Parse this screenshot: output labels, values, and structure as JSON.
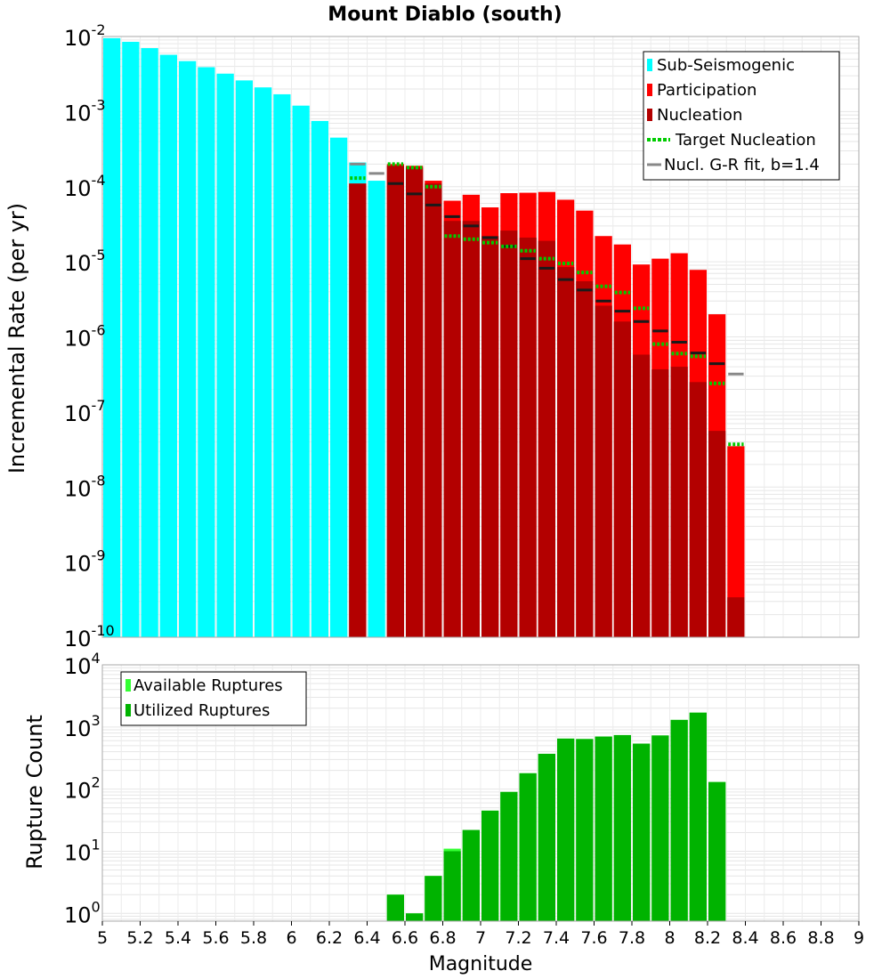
{
  "title": "Mount Diablo (south)",
  "colors": {
    "sub_seismogenic": "#00ffff",
    "participation": "#ff0000",
    "nucleation": "#b30000",
    "target_nucleation": "#00cc00",
    "gr_fit": "#888888",
    "target_segment_dark": "#1a1a1a",
    "available": "#33ff33",
    "utilized": "#00b300"
  },
  "chart_data": [
    {
      "type": "bar",
      "title": "Mount Diablo (south)",
      "xlabel": "",
      "ylabel": "Incremental Rate (per yr)",
      "yscale": "log",
      "ylim": [
        1e-10,
        0.01
      ],
      "xlim": [
        5,
        9
      ],
      "grid": true,
      "legend_position": "top-right",
      "legend": [
        "Sub-Seismogenic",
        "Participation",
        "Nucleation",
        "Target Nucleation",
        "Nucl. G-R fit, b=1.4"
      ],
      "series": [
        {
          "name": "Sub-Seismogenic",
          "x": [
            5.05,
            5.15,
            5.25,
            5.35,
            5.45,
            5.55,
            5.65,
            5.75,
            5.85,
            5.95,
            6.05,
            6.15,
            6.25,
            6.35,
            6.45
          ],
          "values": [
            0.0095,
            0.0085,
            0.007,
            0.0057,
            0.0047,
            0.0039,
            0.0032,
            0.0026,
            0.0021,
            0.0017,
            0.0012,
            0.00075,
            0.00045,
            0.00021,
            0.00012
          ]
        },
        {
          "name": "Participation",
          "x": [
            6.35,
            6.55,
            6.65,
            6.75,
            6.85,
            6.95,
            7.05,
            7.15,
            7.25,
            7.35,
            7.45,
            7.55,
            7.65,
            7.75,
            7.85,
            7.95,
            8.05,
            8.15,
            8.25,
            8.35
          ],
          "values": [
            0.00011,
            0.0002,
            0.00019,
            0.00012,
            6.5e-05,
            7.8e-05,
            5.3e-05,
            8.2e-05,
            8.3e-05,
            8.5e-05,
            6.7e-05,
            4.8e-05,
            2.2e-05,
            1.7e-05,
            9.2e-06,
            1.1e-05,
            1.3e-05,
            7.8e-06,
            2e-06,
            3.5e-08
          ]
        },
        {
          "name": "Nucleation",
          "x": [
            6.35,
            6.55,
            6.65,
            6.75,
            6.85,
            6.95,
            7.05,
            7.15,
            7.25,
            7.35,
            7.45,
            7.55,
            7.65,
            7.75,
            7.85,
            7.95,
            8.05,
            8.15,
            8.25,
            8.35
          ],
          "values": [
            0.00011,
            0.00019,
            0.00018,
            0.00011,
            3.5e-05,
            3.5e-05,
            2.2e-05,
            2.6e-05,
            2.1e-05,
            1.9e-05,
            8.5e-06,
            5.5e-06,
            2.6e-06,
            1.6e-06,
            5.8e-07,
            3.7e-07,
            4e-07,
            2.5e-07,
            5.6e-08,
            3.4e-10
          ]
        },
        {
          "name": "Target Nucleation",
          "x": [
            6.35,
            6.55,
            6.65,
            6.75,
            6.85,
            6.95,
            7.05,
            7.15,
            7.25,
            7.35,
            7.45,
            7.55,
            7.65,
            7.75,
            7.85,
            7.95,
            8.05,
            8.15,
            8.25,
            8.35
          ],
          "values": [
            0.00013,
            0.0002,
            0.00018,
            0.0001,
            2.2e-05,
            2e-05,
            1.8e-05,
            1.6e-05,
            1.4e-05,
            1.1e-05,
            9.5e-06,
            7.2e-06,
            4.7e-06,
            3.9e-06,
            2.4e-06,
            8e-07,
            6e-07,
            5.5e-07,
            2.4e-07,
            3.7e-08
          ]
        },
        {
          "name": "Nucl. G-R fit, b=1.4",
          "x": [
            6.35,
            6.45,
            8.35
          ],
          "values": [
            0.0002,
            0.00015,
            3.2e-07
          ]
        },
        {
          "name": "",
          "x": [
            6.55,
            6.65,
            6.75,
            6.85,
            6.95,
            7.05,
            7.15,
            7.25,
            7.35,
            7.45,
            7.55,
            7.65,
            7.75,
            7.85,
            7.95,
            8.05,
            8.15,
            8.25
          ],
          "values": [
            0.00011,
            8e-05,
            5.7e-05,
            4e-05,
            3e-05,
            2.1e-05,
            1.6e-05,
            1.1e-05,
            8.2e-06,
            5.8e-06,
            4.2e-06,
            3e-06,
            2.2e-06,
            1.6e-06,
            1.2e-06,
            8.5e-07,
            6.1e-07,
            4.4e-07
          ]
        }
      ]
    },
    {
      "type": "bar",
      "title": "",
      "xlabel": "Magnitude",
      "ylabel": "Rupture Count",
      "yscale": "log",
      "ylim": [
        0.75,
        10000
      ],
      "xlim": [
        5,
        9
      ],
      "grid": true,
      "legend_position": "top-left",
      "legend": [
        "Available Ruptures",
        "Utilized Ruptures"
      ],
      "x_ticks": [
        "5",
        "5.2",
        "5.4",
        "5.6",
        "5.8",
        "6",
        "6.2",
        "6.4",
        "6.6",
        "6.8",
        "7",
        "7.2",
        "7.4",
        "7.6",
        "7.8",
        "8",
        "8.2",
        "8.4",
        "8.6",
        "8.8",
        "9"
      ],
      "series": [
        {
          "name": "Available Ruptures",
          "x": [
            6.55,
            6.65,
            6.75,
            6.85,
            6.95,
            7.05,
            7.15,
            7.25,
            7.35,
            7.45,
            7.55,
            7.65,
            7.75,
            7.85,
            7.95,
            8.05,
            8.15,
            8.25
          ],
          "values": [
            2,
            1,
            4,
            11,
            22,
            45,
            90,
            180,
            370,
            650,
            640,
            700,
            740,
            540,
            730,
            1300,
            1700,
            130
          ]
        },
        {
          "name": "Utilized Ruptures",
          "x": [
            6.55,
            6.65,
            6.75,
            6.85,
            6.95,
            7.05,
            7.15,
            7.25,
            7.35,
            7.45,
            7.55,
            7.65,
            7.75,
            7.85,
            7.95,
            8.05,
            8.15,
            8.25
          ],
          "values": [
            2,
            1,
            4,
            10,
            22,
            45,
            90,
            180,
            370,
            650,
            640,
            700,
            740,
            540,
            730,
            1300,
            1700,
            130
          ]
        }
      ]
    }
  ],
  "top_y_ticks": [
    {
      "base": "10",
      "exp": "-2"
    },
    {
      "base": "10",
      "exp": "-3"
    },
    {
      "base": "10",
      "exp": "-4"
    },
    {
      "base": "10",
      "exp": "-5"
    },
    {
      "base": "10",
      "exp": "-6"
    },
    {
      "base": "10",
      "exp": "-7"
    },
    {
      "base": "10",
      "exp": "-8"
    },
    {
      "base": "10",
      "exp": "-9"
    },
    {
      "base": "10",
      "exp": "-10"
    }
  ],
  "bottom_y_ticks": [
    {
      "base": "10",
      "exp": "4"
    },
    {
      "base": "10",
      "exp": "3"
    },
    {
      "base": "10",
      "exp": "2"
    },
    {
      "base": "10",
      "exp": "1"
    },
    {
      "base": "10",
      "exp": "0"
    }
  ]
}
